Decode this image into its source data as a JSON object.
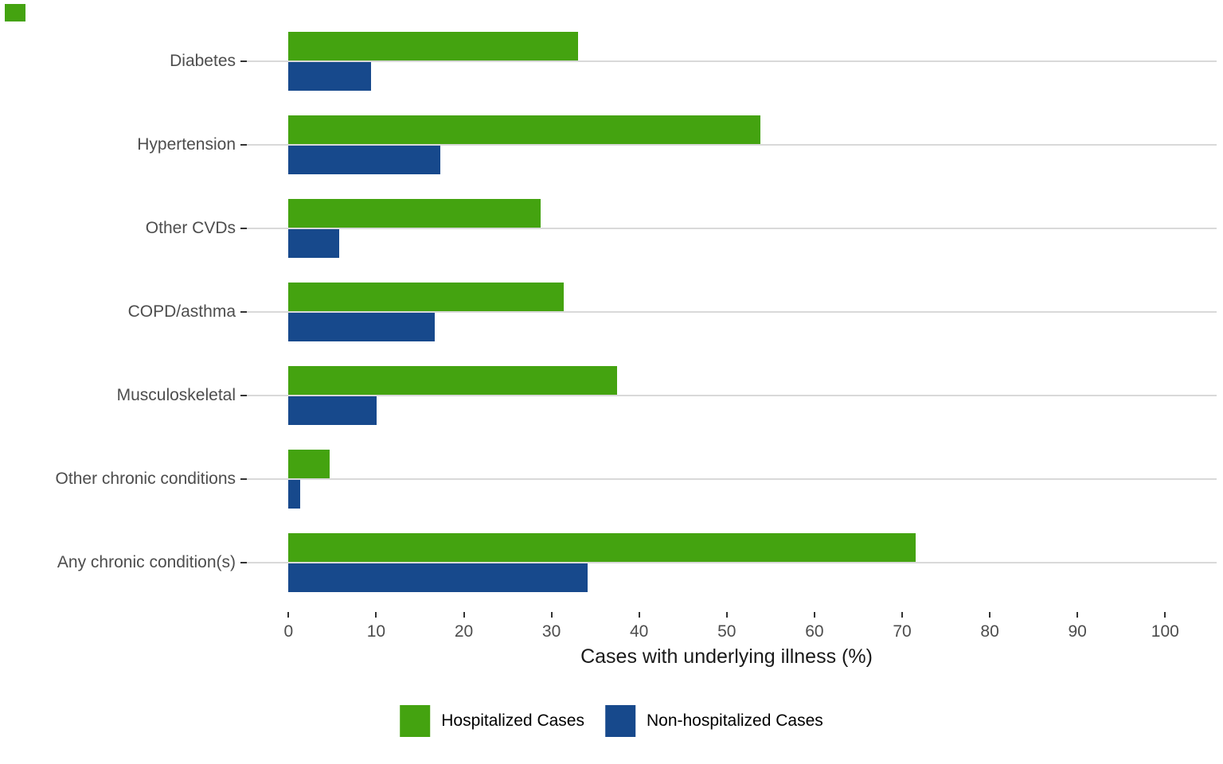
{
  "chart_data": {
    "type": "bar",
    "orientation": "horizontal",
    "title": "",
    "xlabel": "Cases with underlying illness (%)",
    "ylabel": "",
    "categories": [
      "Diabetes",
      "Hypertension",
      "Other CVDs",
      "COPD/asthma",
      "Musculoskeletal",
      "Other chronic conditions",
      "Any chronic condition(s)"
    ],
    "series": [
      {
        "name": "Hospitalized Cases",
        "color": "#44a310",
        "values": [
          33.0,
          53.8,
          28.8,
          31.4,
          37.5,
          4.7,
          71.5
        ]
      },
      {
        "name": "Non-hospitalized Cases",
        "color": "#17498c",
        "values": [
          9.4,
          17.3,
          5.8,
          16.7,
          10.1,
          1.3,
          34.1
        ]
      }
    ],
    "x_ticks": [
      0,
      10,
      20,
      30,
      40,
      50,
      60,
      70,
      80,
      90,
      100
    ],
    "xlim": [
      0,
      106
    ],
    "grid": "horizontal",
    "legend_position": "bottom-center",
    "colors": {
      "grid": "#d9d9d9",
      "axis_tick": "#333333",
      "axis_text": "#4d4d4d",
      "title_text": "#1a1a1a",
      "corner_mark": "#44a310"
    }
  }
}
